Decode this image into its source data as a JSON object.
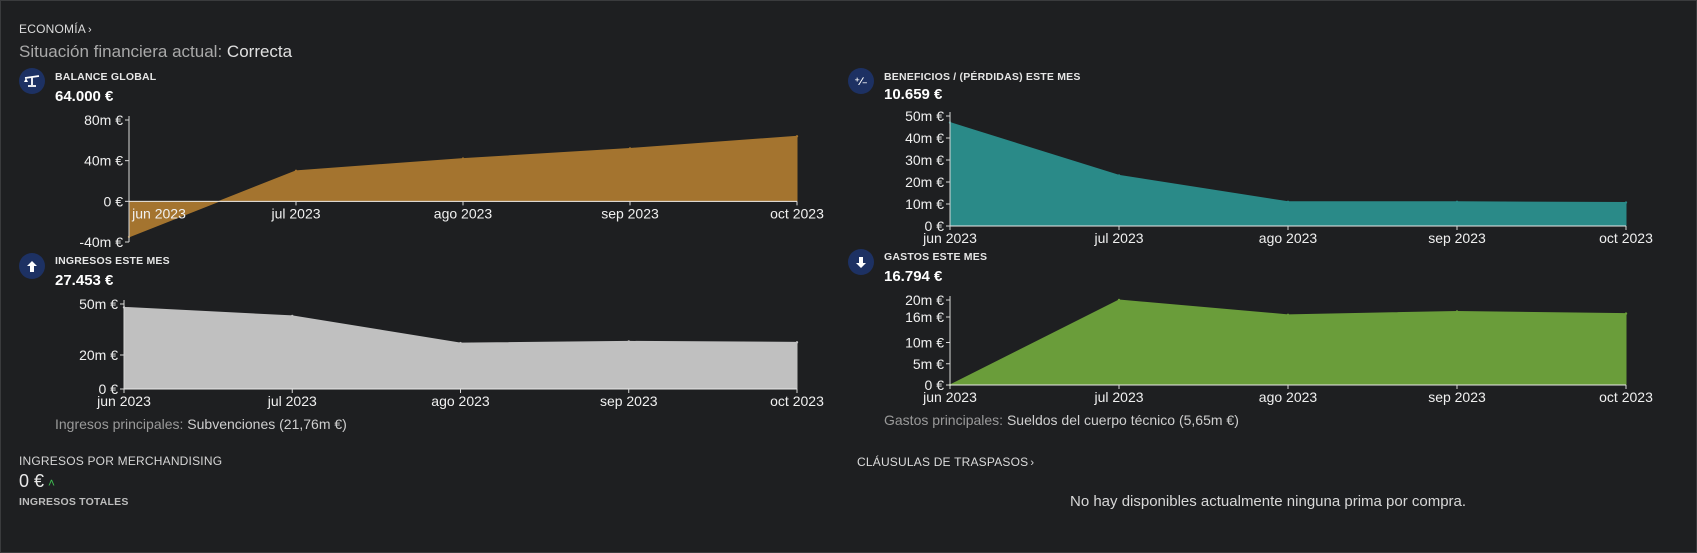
{
  "header": {
    "breadcrumb": "ECONOMÍA",
    "situation_label": "Situación financiera actual:",
    "situation_value": "Correcta"
  },
  "cards": {
    "balance": {
      "title": "BALANCE GLOBAL",
      "value": "64.000 €",
      "icon": "balance-scale-icon"
    },
    "benefits": {
      "title": "BENEFICIOS / (PÉRDIDAS) ESTE MES",
      "value": "10.659 €",
      "icon": "plus-minus-icon"
    },
    "income": {
      "title": "INGRESOS ESTE MES",
      "value": "27.453 €",
      "icon": "arrow-up-icon"
    },
    "expenses": {
      "title": "GASTOS ESTE MES",
      "value": "16.794 €",
      "icon": "arrow-down-icon"
    }
  },
  "income_main": {
    "label": "Ingresos principales:",
    "value": "Subvenciones (21,76m €)"
  },
  "expenses_main": {
    "label": "Gastos principales:",
    "value": "Sueldos del cuerpo técnico (5,65m €)"
  },
  "merch": {
    "label": "INGRESOS POR MERCHANDISING",
    "value": "0 €",
    "sublabel": "INGRESOS TOTALES"
  },
  "transfers": {
    "label": "CLÁUSULAS DE TRASPASOS",
    "empty_message": "No hay disponibles actualmente ninguna prima por compra."
  },
  "colors": {
    "balance": "#a4742f",
    "benefits": "#2a8a88",
    "income": "#c0c0c0",
    "expenses": "#6a9d3a",
    "icon_bg": "#1d3163"
  },
  "chart_data": [
    {
      "id": "balance",
      "type": "area",
      "categories": [
        "jun 2023",
        "jul 2023",
        "ago 2023",
        "sep 2023",
        "oct 2023"
      ],
      "values": [
        -35,
        30,
        42,
        52,
        64
      ],
      "yticks": [
        "80m €",
        "40m €",
        "0 €",
        "-40m €"
      ],
      "ylim": [
        -40,
        80
      ],
      "color": "#a4742f"
    },
    {
      "id": "benefits",
      "type": "area",
      "categories": [
        "jun 2023",
        "jul 2023",
        "ago 2023",
        "sep 2023",
        "oct 2023"
      ],
      "values": [
        47,
        23,
        11,
        11,
        10.659
      ],
      "yticks": [
        "50m €",
        "40m €",
        "30m €",
        "20m €",
        "10m €",
        "0 €"
      ],
      "ylim": [
        0,
        50
      ],
      "color": "#2a8a88"
    },
    {
      "id": "income",
      "type": "area",
      "categories": [
        "jun 2023",
        "jul 2023",
        "ago 2023",
        "sep 2023",
        "oct 2023"
      ],
      "values": [
        48,
        43,
        27,
        28,
        27.453
      ],
      "yticks": [
        "50m €",
        "20m €",
        "0 €"
      ],
      "ylim": [
        0,
        50
      ],
      "color": "#c0c0c0"
    },
    {
      "id": "expenses",
      "type": "area",
      "categories": [
        "jun 2023",
        "jul 2023",
        "ago 2023",
        "sep 2023",
        "oct 2023"
      ],
      "values": [
        0,
        20,
        16.5,
        17.3,
        16.794
      ],
      "yticks": [
        "20m €",
        "16m €",
        "10m €",
        "5m €",
        "0 €"
      ],
      "ylim": [
        0,
        20
      ],
      "color": "#6a9d3a"
    }
  ]
}
